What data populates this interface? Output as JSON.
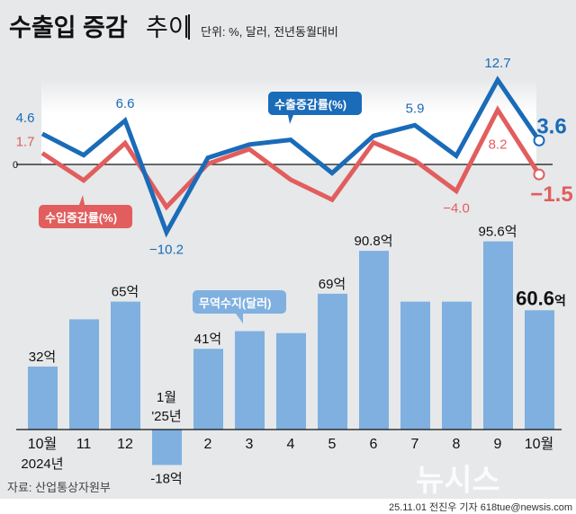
{
  "header": {
    "title": "수출입 증감",
    "title_suffix": "추이",
    "unit_note": "단위: %, 달러, 전년동월대비"
  },
  "footer": {
    "source": "자료: 산업통상자원부",
    "credit": "25.11.01 전진우 기자 618tue@newsis.com",
    "watermark": "뉴시스"
  },
  "colors": {
    "background": "#e6e8ea",
    "export_line": "#1a6bb8",
    "import_line": "#e25d5d",
    "bar": "#7fb0e0"
  },
  "chart_data": [
    {
      "type": "line",
      "categories": [
        "10월",
        "11",
        "12",
        "1월",
        "2",
        "3",
        "4",
        "5",
        "6",
        "7",
        "8",
        "9",
        "10월"
      ],
      "zero_label": "0",
      "series": [
        {
          "name": "수출증감률(%)",
          "values": [
            4.6,
            1.4,
            6.6,
            -10.2,
            1.0,
            3.0,
            3.7,
            -1.3,
            4.3,
            5.9,
            1.3,
            12.7,
            3.6
          ],
          "labels": {
            "0": "4.6",
            "2": "6.6",
            "3": "-10.2",
            "9": "5.9",
            "11": "12.7",
            "12": "3.6"
          }
        },
        {
          "name": "수입증감률(%)",
          "values": [
            1.7,
            -2.4,
            3.2,
            -6.4,
            0.1,
            2.3,
            -2.3,
            -5.3,
            3.3,
            0.6,
            -4.0,
            8.2,
            -1.5
          ],
          "labels": {
            "0": "1.7",
            "10": "-4.0",
            "11": "8.2",
            "12": "-1.5"
          }
        }
      ]
    },
    {
      "type": "bar",
      "name": "무역수지(달러)",
      "categories": [
        "10월",
        "11",
        "12",
        "1월",
        "2",
        "3",
        "4",
        "5",
        "6",
        "7",
        "8",
        "9",
        "10월"
      ],
      "sub_labels": {
        "0": "2024년",
        "3": "'25년"
      },
      "values": [
        32,
        56,
        65,
        -18,
        41,
        50,
        49,
        69,
        90.8,
        65,
        65,
        95.6,
        60.6
      ],
      "labels": {
        "0": "32억",
        "2": "65억",
        "3": "-18억",
        "4": "41억",
        "7": "69억",
        "8": "90.8억",
        "11": "95.6억",
        "12": "60.6억"
      }
    }
  ]
}
